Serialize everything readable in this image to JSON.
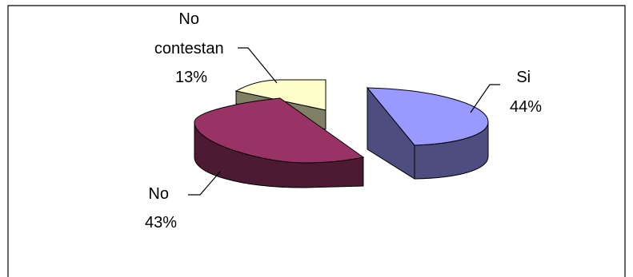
{
  "chart_data": {
    "type": "pie",
    "style": "3d-exploded",
    "legend": "none",
    "slices": [
      {
        "category": "Si",
        "value": 44,
        "label_lines": [
          "Si",
          "44%"
        ],
        "top_color": "#9999ff",
        "side_color": "#4d4d80"
      },
      {
        "category": "No",
        "value": 43,
        "label_lines": [
          "No",
          "43%"
        ],
        "top_color": "#993366",
        "side_color": "#4d1a33"
      },
      {
        "category": "No contestan",
        "value": 13,
        "label_lines": [
          "No",
          "contestan",
          "13%"
        ],
        "top_color": "#ffffcc",
        "side_color": "#808066"
      }
    ]
  }
}
